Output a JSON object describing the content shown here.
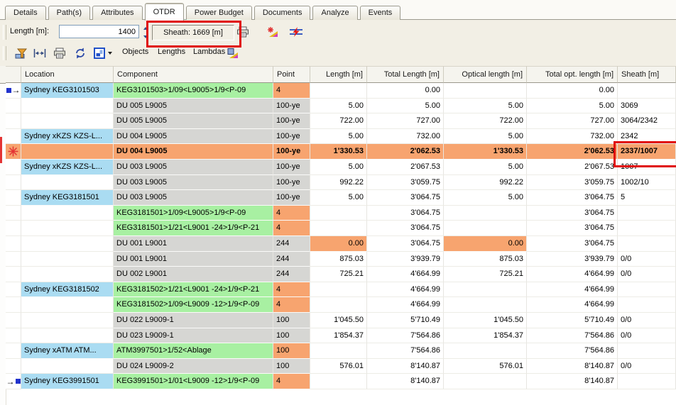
{
  "tabs": [
    {
      "label": "Details"
    },
    {
      "label": "Path(s)"
    },
    {
      "label": "Attributes"
    },
    {
      "label": "OTDR",
      "active": true
    },
    {
      "label": "Power Budget"
    },
    {
      "label": "Documents"
    },
    {
      "label": "Analyze"
    },
    {
      "label": "Events"
    }
  ],
  "toolbar": {
    "length_label": "Length [m]:",
    "length_value": "1400",
    "sheath_label": "Sheath: 1669 [m]",
    "buttons": {
      "objects": "Objects",
      "lengths": "Lengths",
      "lambdas": "Lambdas"
    },
    "icons": [
      "print-icon",
      "new-trace-icon",
      "compare-traces-icon",
      "filter-icon",
      "measure-icon",
      "print-list-icon",
      "refresh-icon",
      "view-mode-icon",
      "lambda-chart-icon"
    ]
  },
  "table": {
    "columns": [
      "Location",
      "Component",
      "Point",
      "Length [m]",
      "Total Length [m]",
      "Optical length [m]",
      "Total opt. length [m]",
      "Sheath [m]"
    ],
    "rows": [
      {
        "marker": "start",
        "location": "Sydney KEG3101503",
        "component": "KEG3101503>1/09<L9005>1/9<P-09",
        "component_bg": "green",
        "point": "4",
        "point_bg": "orange",
        "length": "",
        "total_length": "0.00",
        "optical_length": "",
        "total_opt_length": "0.00",
        "sheath": ""
      },
      {
        "marker": "",
        "location": "",
        "component": "DU 005 L9005",
        "component_bg": "gray",
        "point": "100-ye",
        "point_bg": "gray",
        "length": "5.00",
        "total_length": "5.00",
        "optical_length": "5.00",
        "total_opt_length": "5.00",
        "sheath": "3069"
      },
      {
        "marker": "",
        "location": "",
        "component": "DU 005 L9005",
        "component_bg": "gray",
        "point": "100-ye",
        "point_bg": "gray",
        "length": "722.00",
        "total_length": "727.00",
        "optical_length": "722.00",
        "total_opt_length": "727.00",
        "sheath": "3064/2342"
      },
      {
        "marker": "",
        "location": "Sydney xKZS KZS-L...",
        "component": "DU 004 L9005",
        "component_bg": "gray",
        "point": "100-ye",
        "point_bg": "gray",
        "length": "5.00",
        "total_length": "732.00",
        "optical_length": "5.00",
        "total_opt_length": "732.00",
        "sheath": "2342"
      },
      {
        "marker": "alarm",
        "location": "",
        "component": "DU 004 L9005",
        "component_bg": "orange",
        "point": "100-ye",
        "point_bg": "orange",
        "length": "1'330.53",
        "total_length": "2'062.53",
        "optical_length": "1'330.53",
        "total_opt_length": "2'062.53",
        "sheath": "2337/1007",
        "highlight": true,
        "sheath_boxed": true
      },
      {
        "marker": "",
        "location": "Sydney xKZS KZS-L...",
        "component": "DU 003 L9005",
        "component_bg": "gray",
        "point": "100-ye",
        "point_bg": "gray",
        "length": "5.00",
        "total_length": "2'067.53",
        "optical_length": "5.00",
        "total_opt_length": "2'067.53",
        "sheath": "1007"
      },
      {
        "marker": "",
        "location": "",
        "component": "DU 003 L9005",
        "component_bg": "gray",
        "point": "100-ye",
        "point_bg": "gray",
        "length": "992.22",
        "total_length": "3'059.75",
        "optical_length": "992.22",
        "total_opt_length": "3'059.75",
        "sheath": "1002/10"
      },
      {
        "marker": "",
        "location": "Sydney KEG3181501",
        "component": "DU 003 L9005",
        "component_bg": "gray",
        "point": "100-ye",
        "point_bg": "gray",
        "length": "5.00",
        "total_length": "3'064.75",
        "optical_length": "5.00",
        "total_opt_length": "3'064.75",
        "sheath": "5"
      },
      {
        "marker": "",
        "location": "",
        "component": "KEG3181501>1/09<L9005>1/9<P-09",
        "component_bg": "green",
        "point": "4",
        "point_bg": "orange",
        "length": "",
        "total_length": "3'064.75",
        "optical_length": "",
        "total_opt_length": "3'064.75",
        "sheath": ""
      },
      {
        "marker": "",
        "location": "",
        "component": "KEG3181501>1/21<L9001 -24>1/9<P-21",
        "component_bg": "green",
        "point": "4",
        "point_bg": "orange",
        "length": "",
        "total_length": "3'064.75",
        "optical_length": "",
        "total_opt_length": "3'064.75",
        "sheath": ""
      },
      {
        "marker": "",
        "location": "",
        "component": "DU 001 L9001",
        "component_bg": "gray",
        "point": "244",
        "point_bg": "gray",
        "length": "0.00",
        "total_length": "3'064.75",
        "optical_length": "0.00",
        "total_opt_length": "3'064.75",
        "sheath": "",
        "length_hl": true
      },
      {
        "marker": "",
        "location": "",
        "component": "DU 001 L9001",
        "component_bg": "gray",
        "point": "244",
        "point_bg": "gray",
        "length": "875.03",
        "total_length": "3'939.79",
        "optical_length": "875.03",
        "total_opt_length": "3'939.79",
        "sheath": "0/0"
      },
      {
        "marker": "",
        "location": "",
        "component": "DU 002 L9001",
        "component_bg": "gray",
        "point": "244",
        "point_bg": "gray",
        "length": "725.21",
        "total_length": "4'664.99",
        "optical_length": "725.21",
        "total_opt_length": "4'664.99",
        "sheath": "0/0"
      },
      {
        "marker": "",
        "location": "Sydney KEG3181502",
        "component": "KEG3181502>1/21<L9001 -24>1/9<P-21",
        "component_bg": "green",
        "point": "4",
        "point_bg": "orange",
        "length": "",
        "total_length": "4'664.99",
        "optical_length": "",
        "total_opt_length": "4'664.99",
        "sheath": ""
      },
      {
        "marker": "",
        "location": "",
        "component": "KEG3181502>1/09<L9009 -12>1/9<P-09",
        "component_bg": "green",
        "point": "4",
        "point_bg": "orange",
        "length": "",
        "total_length": "4'664.99",
        "optical_length": "",
        "total_opt_length": "4'664.99",
        "sheath": ""
      },
      {
        "marker": "",
        "location": "",
        "component": "DU 022 L9009-1",
        "component_bg": "gray",
        "point": "100",
        "point_bg": "gray",
        "length": "1'045.50",
        "total_length": "5'710.49",
        "optical_length": "1'045.50",
        "total_opt_length": "5'710.49",
        "sheath": "0/0"
      },
      {
        "marker": "",
        "location": "",
        "component": "DU 023 L9009-1",
        "component_bg": "gray",
        "point": "100",
        "point_bg": "gray",
        "length": "1'854.37",
        "total_length": "7'564.86",
        "optical_length": "1'854.37",
        "total_opt_length": "7'564.86",
        "sheath": "0/0"
      },
      {
        "marker": "",
        "location": "Sydney xATM ATM...",
        "component": "ATM3997501>1/52<Ablage",
        "component_bg": "green",
        "point": "100",
        "point_bg": "orange",
        "length": "",
        "total_length": "7'564.86",
        "optical_length": "",
        "total_opt_length": "7'564.86",
        "sheath": ""
      },
      {
        "marker": "",
        "location": "",
        "component": "DU 024 L9009-2",
        "component_bg": "gray",
        "point": "100",
        "point_bg": "gray",
        "length": "576.01",
        "total_length": "8'140.87",
        "optical_length": "576.01",
        "total_opt_length": "8'140.87",
        "sheath": "0/0"
      },
      {
        "marker": "end",
        "location": "Sydney KEG3991501",
        "component": "KEG3991501>1/01<L9009 -12>1/9<P-09",
        "component_bg": "green",
        "point": "4",
        "point_bg": "orange",
        "length": "",
        "total_length": "8'140.87",
        "optical_length": "",
        "total_opt_length": "8'140.87",
        "sheath": ""
      }
    ]
  },
  "colors": {
    "location_bg": "#aadcf2",
    "connection_bg": "#a8f0a2",
    "cable_bg": "#d6d6d3",
    "highlight_bg": "#f7a46f",
    "annotation_red": "#e00b0b",
    "toolbar_bg": "#f2efe5"
  }
}
